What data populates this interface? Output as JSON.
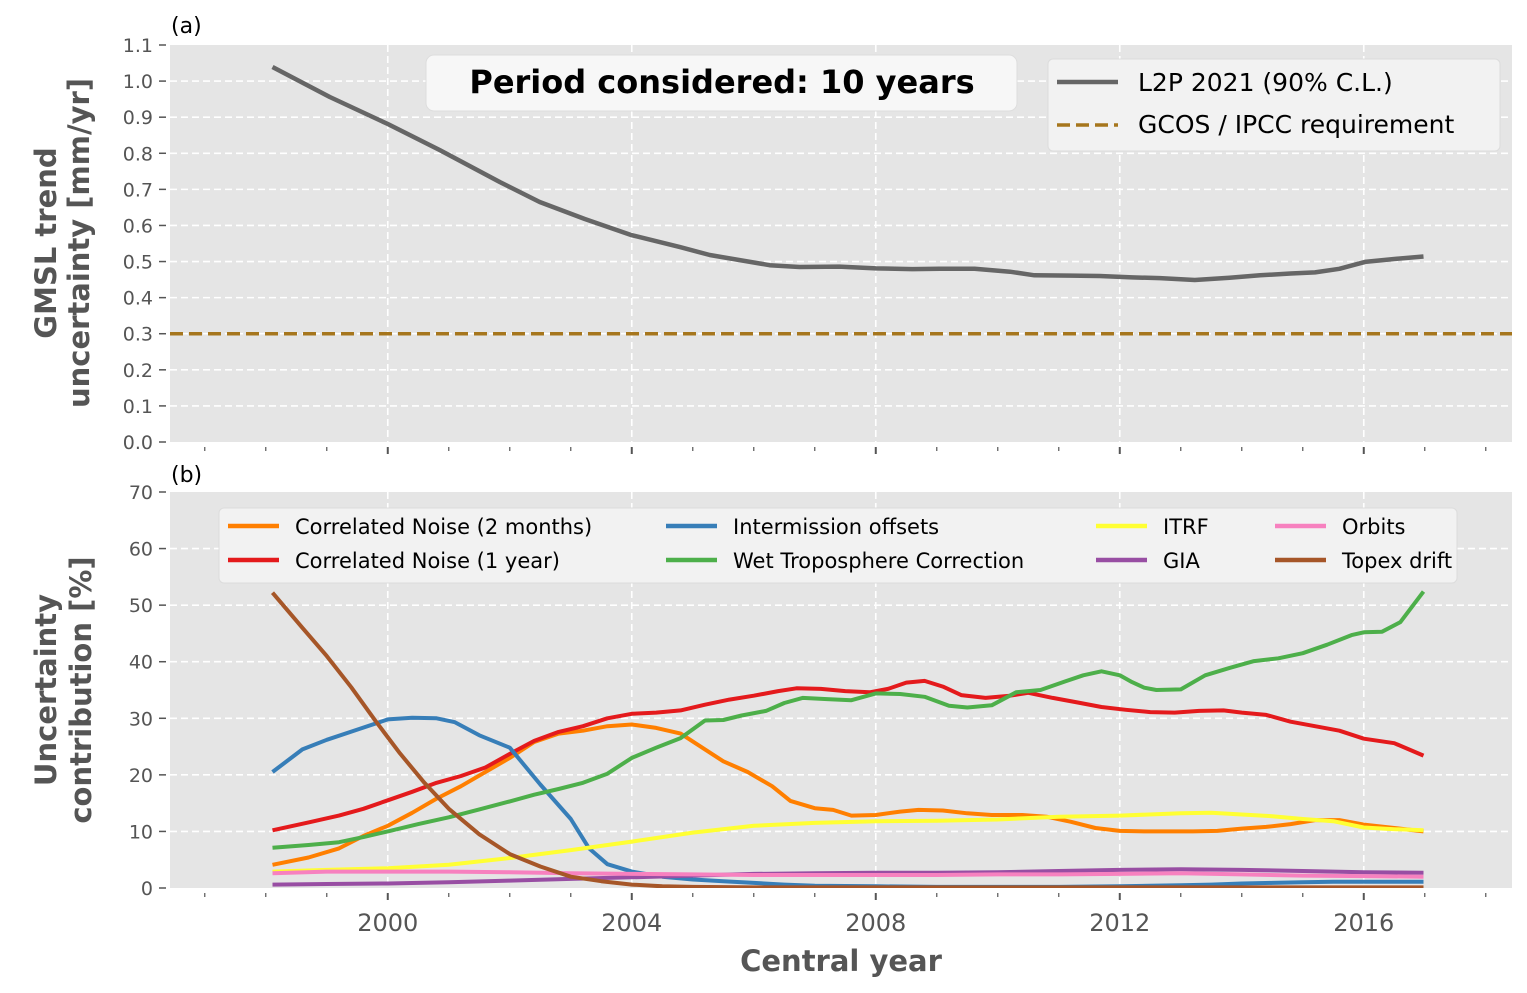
{
  "chart_data": [
    {
      "panel_label": "(a)",
      "type": "line",
      "title": "",
      "xlabel": "",
      "ylabel": "GMSL trend\nuncertainty [mm/yr]",
      "ylabel_lines": [
        "GMSL trend",
        "uncertainty [mm/yr]"
      ],
      "xlim": [
        1996.43,
        2018.43
      ],
      "ylim": [
        0.0,
        1.1
      ],
      "yticks": [
        0.0,
        0.1,
        0.2,
        0.3,
        0.4,
        0.5,
        0.6,
        0.7,
        0.8,
        0.9,
        1.0,
        1.1
      ],
      "ytick_labels": [
        "0.0",
        "0.1",
        "0.2",
        "0.3",
        "0.4",
        "0.5",
        "0.6",
        "0.7",
        "0.8",
        "0.9",
        "1.0",
        "1.1"
      ],
      "xticks_major": [
        2000,
        2004,
        2008,
        2012,
        2016
      ],
      "xticks_minor": [
        1997,
        1998,
        1999,
        2001,
        2002,
        2003,
        2005,
        2006,
        2007,
        2009,
        2010,
        2011,
        2013,
        2014,
        2015,
        2017,
        2018
      ],
      "grid": true,
      "annotation": "Period considered: 10 years",
      "legend_position": "top-right",
      "series": [
        {
          "name": "L2P 2021 (90% C.L.)",
          "color": "#666666",
          "style": "solid",
          "x": [
            1998.11,
            1999.05,
            2000.0,
            2000.85,
            2001.84,
            2002.49,
            2003.23,
            2004.0,
            2004.79,
            2005.28,
            2006.26,
            2006.75,
            2007.4,
            2008.0,
            2008.6,
            2009.05,
            2009.62,
            2010.2,
            2010.6,
            2011.2,
            2011.67,
            2012.2,
            2012.66,
            2013.23,
            2013.8,
            2014.3,
            2014.8,
            2015.2,
            2015.6,
            2016.02,
            2016.5,
            2016.98
          ],
          "y": [
            1.039,
            0.956,
            0.881,
            0.809,
            0.72,
            0.665,
            0.618,
            0.573,
            0.54,
            0.518,
            0.49,
            0.485,
            0.486,
            0.481,
            0.479,
            0.48,
            0.48,
            0.472,
            0.462,
            0.461,
            0.46,
            0.456,
            0.454,
            0.449,
            0.455,
            0.462,
            0.467,
            0.47,
            0.48,
            0.499,
            0.507,
            0.514
          ]
        },
        {
          "name": "GCOS / IPCC requirement",
          "color": "#A6761D",
          "style": "dashed",
          "x": [
            1996.43,
            2018.43
          ],
          "y": [
            0.3,
            0.3
          ]
        }
      ]
    },
    {
      "panel_label": "(b)",
      "type": "line",
      "title": "",
      "xlabel": "Central year",
      "ylabel": "Uncertainty\ncontribution [%]",
      "ylabel_lines": [
        "Uncertainty",
        "contribution [%]"
      ],
      "xlim": [
        1996.43,
        2018.43
      ],
      "ylim": [
        0,
        70
      ],
      "yticks": [
        0,
        10,
        20,
        30,
        40,
        50,
        60,
        70
      ],
      "ytick_labels": [
        "0",
        "10",
        "20",
        "30",
        "40",
        "50",
        "60",
        "70"
      ],
      "xticks_major": [
        2000,
        2004,
        2008,
        2012,
        2016
      ],
      "xtick_labels": [
        "2000",
        "2004",
        "2008",
        "2012",
        "2016"
      ],
      "xticks_minor": [
        1997,
        1998,
        1999,
        2001,
        2002,
        2003,
        2005,
        2006,
        2007,
        2009,
        2010,
        2011,
        2013,
        2014,
        2015,
        2017,
        2018
      ],
      "grid": true,
      "legend_position": "top",
      "legend_columns": 4,
      "series": [
        {
          "name": "Correlated Noise (2 months)",
          "color": "#FF7F00",
          "x": [
            1998.11,
            1998.7,
            1999.2,
            1999.6,
            2000.0,
            2000.4,
            2000.8,
            2001.2,
            2001.6,
            2002.0,
            2002.4,
            2002.8,
            2003.2,
            2003.6,
            2004.0,
            2004.4,
            2004.8,
            2005.2,
            2005.5,
            2005.9,
            2006.3,
            2006.6,
            2007.0,
            2007.3,
            2007.6,
            2008.0,
            2008.4,
            2008.7,
            2009.1,
            2009.5,
            2009.9,
            2010.4,
            2010.8,
            2011.2,
            2011.6,
            2012.0,
            2012.4,
            2012.8,
            2013.2,
            2013.6,
            2014.0,
            2014.4,
            2014.8,
            2015.2,
            2015.6,
            2016.0,
            2016.5,
            2016.98
          ],
          "y": [
            4.1,
            5.4,
            7.0,
            9.2,
            11.0,
            13.3,
            15.8,
            18.0,
            20.5,
            23.0,
            25.8,
            27.3,
            27.8,
            28.6,
            28.9,
            28.3,
            27.3,
            24.5,
            22.4,
            20.5,
            18.0,
            15.4,
            14.1,
            13.8,
            12.8,
            12.9,
            13.5,
            13.8,
            13.7,
            13.2,
            12.9,
            12.9,
            12.6,
            11.7,
            10.6,
            10.1,
            10.0,
            10.0,
            10.0,
            10.1,
            10.5,
            10.8,
            11.3,
            12.0,
            12.0,
            11.2,
            10.6,
            10.0
          ]
        },
        {
          "name": "Correlated Noise (1 year)",
          "color": "#E41A1C",
          "x": [
            1998.11,
            1998.7,
            1999.2,
            1999.6,
            2000.0,
            2000.4,
            2000.8,
            2001.2,
            2001.6,
            2002.0,
            2002.4,
            2002.8,
            2003.2,
            2003.6,
            2004.0,
            2004.4,
            2004.8,
            2005.2,
            2005.6,
            2006.0,
            2006.4,
            2006.7,
            2007.1,
            2007.5,
            2007.9,
            2008.2,
            2008.5,
            2008.8,
            2009.1,
            2009.4,
            2009.8,
            2010.2,
            2010.5,
            2010.9,
            2011.3,
            2011.7,
            2012.1,
            2012.5,
            2012.9,
            2013.3,
            2013.7,
            2014.0,
            2014.4,
            2014.8,
            2015.2,
            2015.6,
            2016.0,
            2016.5,
            2016.98
          ],
          "y": [
            10.2,
            11.6,
            12.8,
            14.0,
            15.5,
            17.0,
            18.6,
            19.8,
            21.3,
            23.7,
            26.0,
            27.6,
            28.6,
            30.0,
            30.8,
            31.0,
            31.4,
            32.4,
            33.3,
            34.0,
            34.8,
            35.3,
            35.2,
            34.8,
            34.6,
            35.2,
            36.3,
            36.6,
            35.6,
            34.1,
            33.6,
            34.0,
            34.5,
            33.6,
            32.8,
            32.0,
            31.5,
            31.1,
            31.0,
            31.3,
            31.4,
            31.0,
            30.6,
            29.4,
            28.6,
            27.8,
            26.4,
            25.6,
            23.4
          ]
        },
        {
          "name": "Intermission offsets",
          "color": "#377EB8",
          "x": [
            1998.11,
            1998.6,
            1999.0,
            1999.5,
            2000.0,
            2000.4,
            2000.8,
            2001.1,
            2001.5,
            2002.0,
            2002.5,
            2003.0,
            2003.3,
            2003.6,
            2004.0,
            2004.5,
            2005.0,
            2005.5,
            2006.0,
            2006.5,
            2007.0,
            2008.0,
            2009.0,
            2010.0,
            2011.0,
            2012.0,
            2012.5,
            2013.0,
            2013.5,
            2014.0,
            2014.5,
            2015.0,
            2015.5,
            2016.0,
            2016.5,
            2016.98
          ],
          "y": [
            20.5,
            24.5,
            26.2,
            28.0,
            29.8,
            30.1,
            30.0,
            29.3,
            27.0,
            24.8,
            18.3,
            12.2,
            7.0,
            4.2,
            2.9,
            2.0,
            1.5,
            1.2,
            0.9,
            0.6,
            0.4,
            0.3,
            0.2,
            0.2,
            0.2,
            0.3,
            0.4,
            0.5,
            0.6,
            0.8,
            0.9,
            1.0,
            1.1,
            1.1,
            1.1,
            1.1
          ]
        },
        {
          "name": "Wet Troposphere Correction",
          "color": "#4DAF4A",
          "x": [
            1998.11,
            1998.7,
            1999.2,
            1999.6,
            2000.0,
            2000.5,
            2001.0,
            2001.5,
            2002.0,
            2002.4,
            2002.8,
            2003.2,
            2003.6,
            2004.0,
            2004.4,
            2004.8,
            2005.2,
            2005.5,
            2005.8,
            2006.2,
            2006.5,
            2006.8,
            2007.2,
            2007.6,
            2008.0,
            2008.4,
            2008.8,
            2009.2,
            2009.5,
            2009.9,
            2010.3,
            2010.7,
            2011.1,
            2011.4,
            2011.7,
            2012.0,
            2012.2,
            2012.4,
            2012.6,
            2013.0,
            2013.4,
            2013.8,
            2014.2,
            2014.6,
            2015.0,
            2015.4,
            2015.8,
            2016.0,
            2016.3,
            2016.6,
            2016.98
          ],
          "y": [
            7.1,
            7.6,
            8.1,
            9.0,
            10.0,
            11.3,
            12.5,
            13.9,
            15.3,
            16.5,
            17.5,
            18.6,
            20.2,
            23.0,
            24.8,
            26.5,
            29.6,
            29.7,
            30.5,
            31.3,
            32.7,
            33.6,
            33.4,
            33.2,
            34.4,
            34.3,
            33.8,
            32.2,
            31.9,
            32.3,
            34.6,
            35.0,
            36.5,
            37.6,
            38.3,
            37.6,
            36.4,
            35.4,
            35.0,
            35.1,
            37.6,
            38.9,
            40.1,
            40.6,
            41.5,
            43.0,
            44.7,
            45.2,
            45.3,
            47.0,
            52.4
          ]
        },
        {
          "name": "ITRF",
          "color": "#FFFF33",
          "x": [
            1998.11,
            1999.0,
            2000.0,
            2001.0,
            2002.0,
            2003.0,
            2004.0,
            2005.0,
            2006.0,
            2007.0,
            2008.0,
            2009.0,
            2010.0,
            2011.0,
            2012.0,
            2013.0,
            2013.5,
            2014.0,
            2014.5,
            2015.0,
            2015.5,
            2016.0,
            2016.5,
            2016.98
          ],
          "y": [
            2.9,
            3.2,
            3.5,
            4.1,
            5.3,
            6.7,
            8.2,
            9.8,
            11.0,
            11.5,
            11.8,
            11.9,
            12.1,
            12.6,
            12.8,
            13.2,
            13.3,
            13.0,
            12.7,
            12.2,
            11.8,
            10.7,
            10.4,
            10.2
          ]
        },
        {
          "name": "GIA",
          "color": "#984EA3",
          "x": [
            1998.11,
            1999.0,
            2000.0,
            2001.0,
            2002.0,
            2003.0,
            2004.0,
            2005.0,
            2006.0,
            2007.0,
            2008.0,
            2009.0,
            2010.0,
            2011.0,
            2012.0,
            2013.0,
            2014.0,
            2015.0,
            2016.0,
            2016.98
          ],
          "y": [
            0.6,
            0.7,
            0.8,
            1.0,
            1.3,
            1.6,
            1.9,
            2.2,
            2.5,
            2.6,
            2.7,
            2.7,
            2.8,
            3.0,
            3.2,
            3.3,
            3.2,
            3.0,
            2.8,
            2.7
          ]
        },
        {
          "name": "Orbits",
          "color": "#F781BF",
          "x": [
            1998.11,
            1999.0,
            2000.0,
            2001.0,
            2002.0,
            2003.0,
            2004.0,
            2005.0,
            2006.0,
            2007.0,
            2008.0,
            2009.0,
            2010.0,
            2011.0,
            2012.0,
            2013.0,
            2014.0,
            2015.0,
            2016.0,
            2016.98
          ],
          "y": [
            2.6,
            2.9,
            2.9,
            2.9,
            2.8,
            2.6,
            2.5,
            2.4,
            2.3,
            2.3,
            2.3,
            2.3,
            2.4,
            2.4,
            2.5,
            2.6,
            2.4,
            2.2,
            2.1,
            2.0
          ]
        },
        {
          "name": "Topex drift",
          "color": "#A65628",
          "x": [
            1998.11,
            1998.6,
            1999.0,
            1999.4,
            1999.8,
            2000.2,
            2000.6,
            2001.0,
            2001.5,
            2002.0,
            2002.5,
            2003.0,
            2003.5,
            2004.0,
            2004.5,
            2005.0,
            2006.0,
            2008.0,
            2010.0,
            2012.0,
            2014.0,
            2016.0,
            2016.98
          ],
          "y": [
            52.2,
            46.0,
            41.0,
            35.5,
            29.5,
            23.8,
            18.6,
            14.0,
            9.5,
            6.0,
            3.8,
            2.0,
            1.2,
            0.6,
            0.3,
            0.2,
            0.1,
            0.1,
            0.1,
            0.1,
            0.1,
            0.1,
            0.1
          ]
        }
      ]
    }
  ],
  "figure": {
    "shared_xlabel": "Central year"
  }
}
